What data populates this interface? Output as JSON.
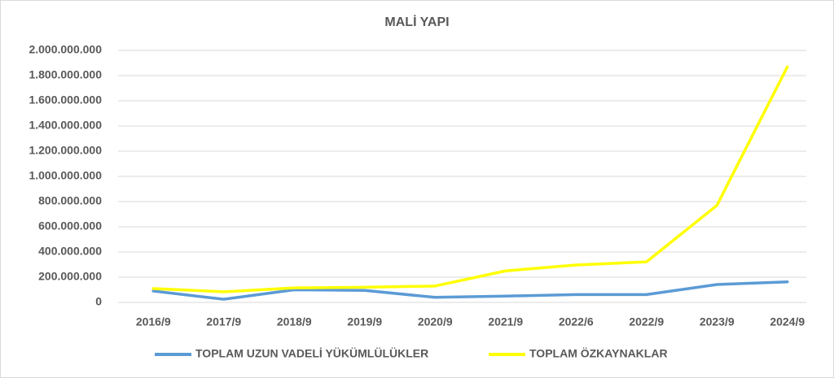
{
  "chart_data": {
    "type": "line",
    "title": "MALİ YAPI",
    "categories": [
      "2016/9",
      "2017/9",
      "2018/9",
      "2019/9",
      "2020/9",
      "2021/9",
      "2022/6",
      "2022/9",
      "2023/9",
      "2024/9"
    ],
    "series": [
      {
        "name": "TOPLAM UZUN VADELİ YÜKÜMLÜLÜKLER",
        "color": "#5b9bd5",
        "values": [
          90000000,
          25000000,
          100000000,
          95000000,
          40000000,
          50000000,
          62000000,
          62000000,
          142000000,
          163000000
        ]
      },
      {
        "name": "TOPLAM ÖZKAYNAKLAR",
        "color": "#ffff00",
        "values": [
          110000000,
          84000000,
          115000000,
          120000000,
          130000000,
          250000000,
          297000000,
          322000000,
          770000000,
          1870000000
        ]
      }
    ],
    "ylim": [
      0,
      2000000000
    ],
    "yticks": [
      0,
      {
        "value": 200000000,
        "label": "200.000.000"
      },
      {
        "value": 400000000,
        "label": "400.000.000"
      },
      {
        "value": 600000000,
        "label": "600.000.000"
      },
      {
        "value": 800000000,
        "label": "800.000.000"
      },
      {
        "value": 1000000000,
        "label": "1.000.000.000"
      },
      {
        "value": 1200000000,
        "label": "1.200.000.000"
      },
      {
        "value": 1400000000,
        "label": "1.400.000.000"
      },
      {
        "value": 1600000000,
        "label": "1.600.000.000"
      },
      {
        "value": 1800000000,
        "label": "1.800.000.000"
      },
      {
        "value": 2000000000,
        "label": "2.000.000.000"
      }
    ],
    "grid": true,
    "legend": "bottom"
  }
}
